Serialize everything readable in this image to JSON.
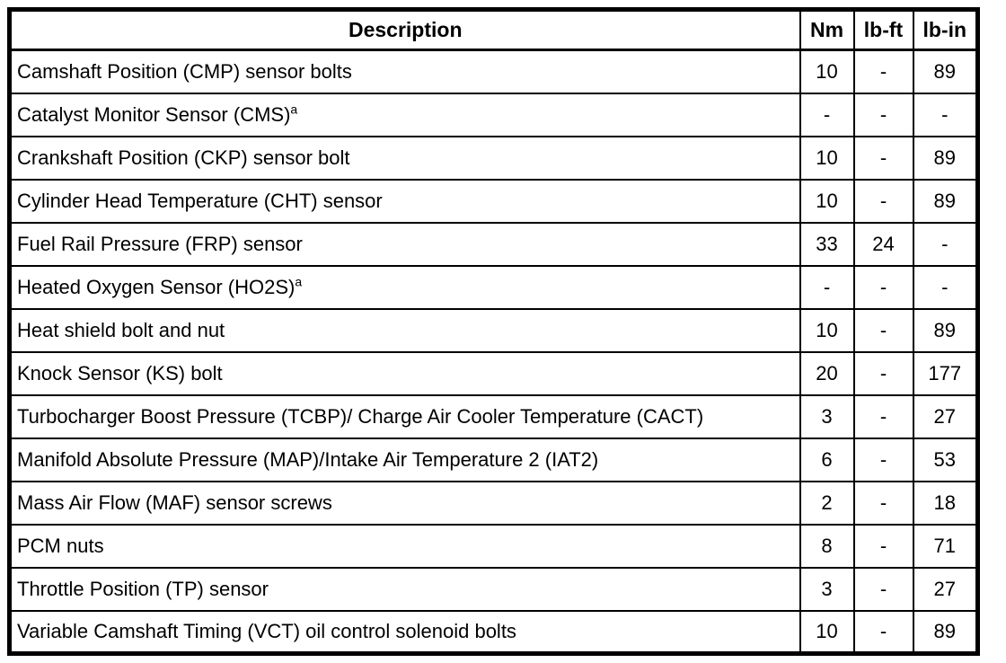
{
  "colors": {
    "border": "#000000",
    "background": "#ffffff",
    "text": "#000000"
  },
  "table": {
    "headers": [
      "Description",
      "Nm",
      "lb-ft",
      "lb-in"
    ],
    "rows": [
      {
        "desc": "Camshaft Position (CMP) sensor bolts",
        "sup": "",
        "nm": "10",
        "lbft": "-",
        "lbin": "89"
      },
      {
        "desc": "Catalyst Monitor Sensor (CMS)",
        "sup": "a",
        "nm": "-",
        "lbft": "-",
        "lbin": "-"
      },
      {
        "desc": "Crankshaft Position (CKP) sensor bolt",
        "sup": "",
        "nm": "10",
        "lbft": "-",
        "lbin": "89"
      },
      {
        "desc": "Cylinder Head Temperature (CHT) sensor",
        "sup": "",
        "nm": "10",
        "lbft": "-",
        "lbin": "89"
      },
      {
        "desc": "Fuel Rail Pressure (FRP) sensor",
        "sup": "",
        "nm": "33",
        "lbft": "24",
        "lbin": "-"
      },
      {
        "desc": "Heated Oxygen Sensor (HO2S)",
        "sup": "a",
        "nm": "-",
        "lbft": "-",
        "lbin": "-"
      },
      {
        "desc": "Heat shield bolt and nut",
        "sup": "",
        "nm": "10",
        "lbft": "-",
        "lbin": "89"
      },
      {
        "desc": "Knock Sensor (KS) bolt",
        "sup": "",
        "nm": "20",
        "lbft": "-",
        "lbin": "177"
      },
      {
        "desc": "Turbocharger Boost Pressure (TCBP)/ Charge Air Cooler Temperature (CACT)",
        "sup": "",
        "nm": "3",
        "lbft": "-",
        "lbin": "27"
      },
      {
        "desc": "Manifold Absolute Pressure (MAP)/Intake Air Temperature 2 (IAT2)",
        "sup": "",
        "nm": "6",
        "lbft": "-",
        "lbin": "53"
      },
      {
        "desc": "Mass Air Flow (MAF) sensor screws",
        "sup": "",
        "nm": "2",
        "lbft": "-",
        "lbin": "18"
      },
      {
        "desc": "PCM nuts",
        "sup": "",
        "nm": "8",
        "lbft": "-",
        "lbin": "71"
      },
      {
        "desc": "Throttle Position (TP) sensor",
        "sup": "",
        "nm": "3",
        "lbft": "-",
        "lbin": "27"
      },
      {
        "desc": "Variable Camshaft Timing (VCT) oil control solenoid bolts",
        "sup": "",
        "nm": "10",
        "lbft": "-",
        "lbin": "89"
      }
    ]
  }
}
